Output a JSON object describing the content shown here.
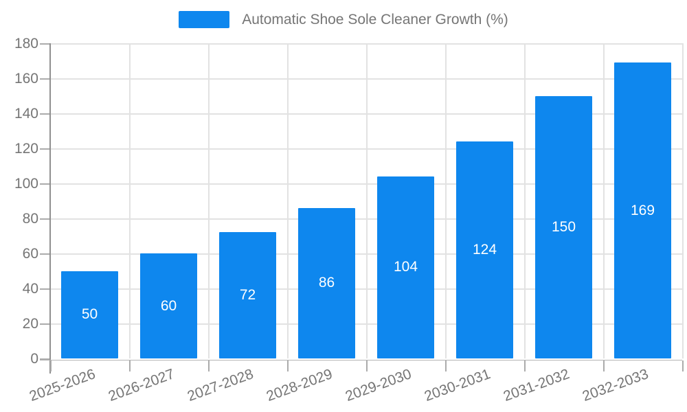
{
  "legend": {
    "label": "Automatic Shoe Sole Cleaner Growth (%)"
  },
  "colors": {
    "bar": "#0E87EE",
    "bar_value_text": "#FFFFFF",
    "axis_text": "#757575",
    "grid_line": "#E2E2E2",
    "y_axis_line": "#8F8F8F",
    "x_axis_line": "#B3B3B3",
    "tick": "#ABABAB",
    "background": "#FFFFFF"
  },
  "chart_data": {
    "type": "bar",
    "title": "Automatic Shoe Sole Cleaner Growth (%)",
    "categories": [
      "2025-2026",
      "2026-2027",
      "2027-2028",
      "2028-2029",
      "2029-2030",
      "2030-2031",
      "2031-2032",
      "2032-2033"
    ],
    "values": [
      50,
      60,
      72,
      86,
      104,
      124,
      150,
      169
    ],
    "series_name": "Automatic Shoe Sole Cleaner Growth (%)",
    "xlabel": "",
    "ylabel": "",
    "ylim": [
      0,
      180
    ],
    "ytick_step": 20,
    "grid": true,
    "legend_position": "top-center",
    "value_label_position": "inside-center",
    "x_label_rotation_deg": -20
  }
}
